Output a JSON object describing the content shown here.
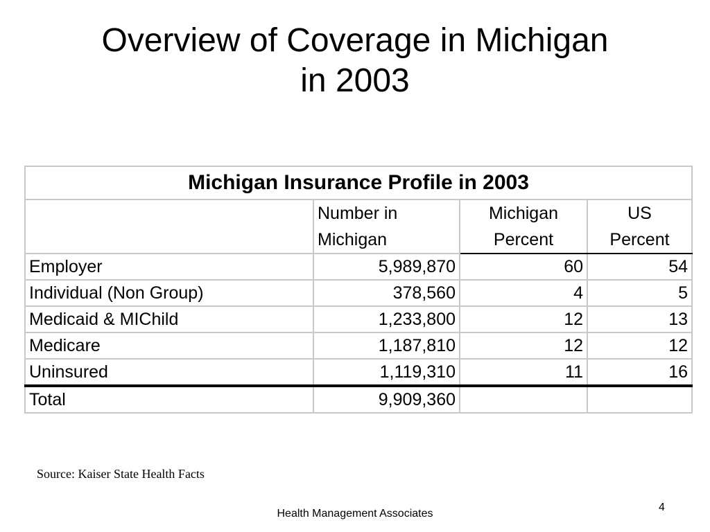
{
  "slide": {
    "title_line1": "Overview of Coverage in Michigan",
    "title_line2": "in 2003",
    "source": "Source: Kaiser State Health Facts",
    "footer": "Health Management Associates",
    "page_number": "4"
  },
  "table": {
    "caption": "Michigan Insurance Profile in 2003",
    "headers": [
      {
        "line1": "",
        "line2": ""
      },
      {
        "line1": "Number in",
        "line2": "Michigan"
      },
      {
        "line1": "Michigan",
        "line2": "Percent"
      },
      {
        "line1": "US",
        "line2": "Percent"
      }
    ],
    "rows": [
      [
        "Employer",
        "5,989,870",
        "60",
        "54"
      ],
      [
        "Individual (Non Group)",
        "378,560",
        "4",
        "5"
      ],
      [
        "Medicaid & MIChild",
        "1,233,800",
        "12",
        "13"
      ],
      [
        "Medicare",
        "1,187,810",
        "12",
        "12"
      ],
      [
        "Uninsured",
        "1,119,310",
        "11",
        "16"
      ],
      [
        "Total",
        "9,909,360",
        "",
        ""
      ]
    ]
  }
}
